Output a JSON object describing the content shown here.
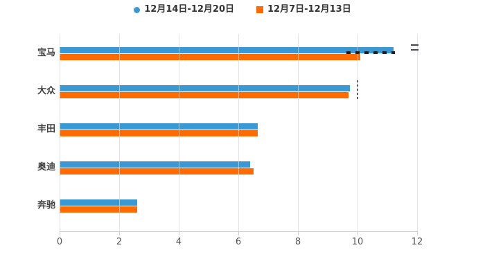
{
  "colors": {
    "background": "#ffffff",
    "series1": "#3a99d2",
    "series2": "#ff6b00",
    "grid": "#cccccc",
    "axis": "#cccccc",
    "tick_label": "#555555",
    "category_label": "#404040",
    "legend_text": "#333333"
  },
  "legend": [
    {
      "label": "12月14日-12月20日",
      "marker": "circle",
      "color": "#3a99d2"
    },
    {
      "label": "12月7日-12月13日",
      "marker": "square",
      "color": "#ff6b00"
    }
  ],
  "chart_data": {
    "type": "bar",
    "orientation": "horizontal",
    "title": "",
    "xlabel": "",
    "ylabel": "",
    "categories": [
      "宝马",
      "大众",
      "丰田",
      "奥迪",
      "奔驰"
    ],
    "series": [
      {
        "name": "12月14日-12月20日",
        "color": "#3a99d2",
        "values": [
          11.2,
          9.75,
          6.65,
          6.4,
          2.6
        ]
      },
      {
        "name": "12月7日-12月13日",
        "color": "#ff6b00",
        "values": [
          10.1,
          9.7,
          6.65,
          6.5,
          2.6
        ]
      }
    ],
    "xlim": [
      0,
      12
    ],
    "xticks": [
      0,
      2,
      4,
      6,
      8,
      10,
      12
    ],
    "grid": true,
    "legend_position": "top"
  }
}
